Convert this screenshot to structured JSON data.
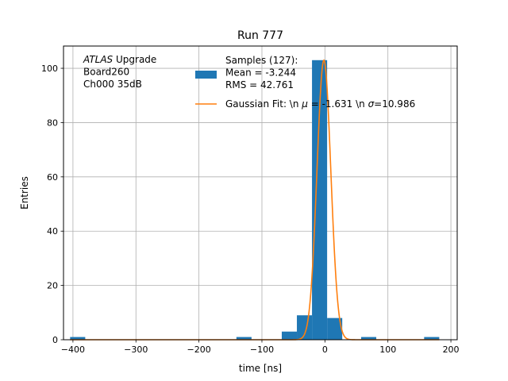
{
  "chart_data": {
    "type": "bar",
    "title": "Run 777",
    "xlabel": "time [ns]",
    "ylabel": "Entries",
    "xlim": [
      -415,
      210
    ],
    "ylim": [
      0,
      108.2
    ],
    "xticks": [
      -400,
      -300,
      -200,
      -100,
      0,
      100,
      200
    ],
    "xtick_labels": [
      "−400",
      "−300",
      "−200",
      "−100",
      "0",
      "100",
      "200"
    ],
    "yticks": [
      0,
      20,
      40,
      60,
      80,
      100
    ],
    "ytick_labels": [
      "0",
      "20",
      "40",
      "60",
      "80",
      "100"
    ],
    "grid": true,
    "histogram": {
      "color": "#1f77b4",
      "bins": [
        {
          "x0": -404.5,
          "x1": -380.5,
          "count": 1
        },
        {
          "x0": -140.5,
          "x1": -116.5,
          "count": 1
        },
        {
          "x0": -68.5,
          "x1": -44.5,
          "count": 3
        },
        {
          "x0": -44.5,
          "x1": -20.5,
          "count": 9
        },
        {
          "x0": -20.5,
          "x1": 3.5,
          "count": 103
        },
        {
          "x0": 3.5,
          "x1": 27.5,
          "count": 8
        },
        {
          "x0": 57.5,
          "x1": 81.5,
          "count": 1
        },
        {
          "x0": 157.5,
          "x1": 181.5,
          "count": 1
        }
      ]
    },
    "fit": {
      "type": "gaussian",
      "color": "#ff7f0e",
      "mu": -1.631,
      "sigma": 10.986,
      "amplitude": 103,
      "x_range": [
        -404.5,
        181.5
      ]
    },
    "legend": {
      "placement": "top-center",
      "histogram_lines": [
        "Samples (127):",
        " Mean = -3.244",
        " RMS = 42.761"
      ],
      "fit_label_parts": [
        "Gaussian Fit: \\n ",
        "μ",
        " = -1.631 \\n ",
        "σ",
        "=10.986"
      ]
    },
    "annotation": {
      "lines": [
        {
          "italic": "ATLAS",
          "rest": " Upgrade"
        },
        {
          "italic": "",
          "rest": " Board260"
        },
        {
          "italic": "",
          "rest": " Ch000 35dB"
        }
      ]
    }
  }
}
